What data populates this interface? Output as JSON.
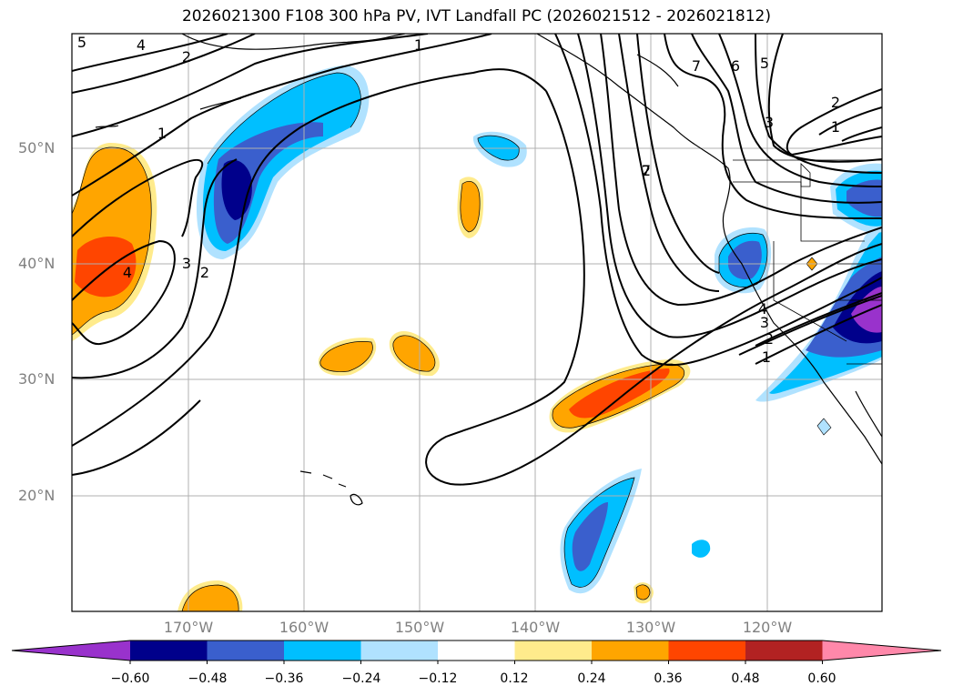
{
  "title": "2026021300 F108 300 hPa PV, IVT Landfall PC (2026021512 - 2026021812)",
  "lat_labels": [
    "50°N",
    "40°N",
    "30°N",
    "20°N"
  ],
  "lon_labels": [
    "170°W",
    "160°W",
    "150°W",
    "140°W",
    "130°W",
    "120°W"
  ],
  "contour_labels": [
    "5",
    "4",
    "2",
    "1",
    "1",
    "3",
    "2",
    "4",
    "2",
    "7",
    "6",
    "5",
    "7",
    "3",
    "2",
    "1",
    "4",
    "3",
    "2",
    "1"
  ],
  "colorbar": {
    "ticks": [
      "−0.60",
      "−0.48",
      "−0.36",
      "−0.24",
      "−0.12",
      "0.12",
      "0.24",
      "0.36",
      "0.48",
      "0.60"
    ],
    "colors": [
      "#9932cc",
      "#00008b",
      "#3a5fcd",
      "#00bfff",
      "#b0e2ff",
      "#ffffff",
      "#ffeb8c",
      "#ffa500",
      "#ff4500",
      "#b22222",
      "#ff88aa"
    ]
  }
}
